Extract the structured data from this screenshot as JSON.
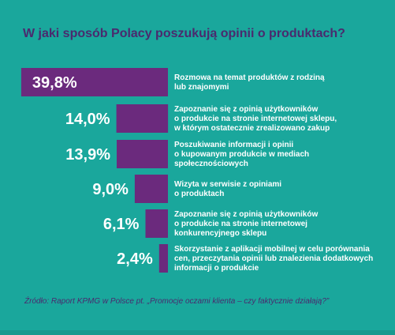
{
  "title": "W jaki sposób Polacy poszukują opinii o produktach?",
  "source": "Źródło: Raport KPMG w Polsce pt. „Promocje oczami klienta – czy faktycznie działają?”",
  "colors": {
    "background": "#1aa79c",
    "bar": "#6b2a7d",
    "title": "#4a2a6e",
    "value_text": "#ffffff",
    "category_text": "#ffffff"
  },
  "chart_data": {
    "type": "bar",
    "orientation": "horizontal",
    "xlim": [
      0,
      40
    ],
    "categories": [
      [
        "Rozmowa na temat produktów z rodziną",
        "lub znajomymi"
      ],
      [
        "Zapoznanie się z opinią użytkowników",
        "o produkcie na stronie internetowej sklepu,",
        "w którym ostatecznie zrealizowano zakup"
      ],
      [
        "Poszukiwanie informacji i opinii",
        "o kupowanym produkcie w mediach",
        "społecznościowych"
      ],
      [
        "Wizyta w serwisie z opiniami",
        "o produktach"
      ],
      [
        "Zapoznanie się z opinią użytkowników",
        "o produkcie na stronie internetowej",
        "konkurencyjnego sklepu"
      ],
      [
        "Skorzystanie z aplikacji mobilnej w celu porównania",
        "cen, przeczytania opinii lub znalezienia dodatkowych",
        "informacji o produkcie"
      ]
    ],
    "values": [
      39.8,
      14.0,
      13.9,
      9.0,
      6.1,
      2.4
    ],
    "value_labels": [
      "39,8%",
      "14,0%",
      "13,9%",
      "9,0%",
      "6,1%",
      "2,4%"
    ]
  }
}
